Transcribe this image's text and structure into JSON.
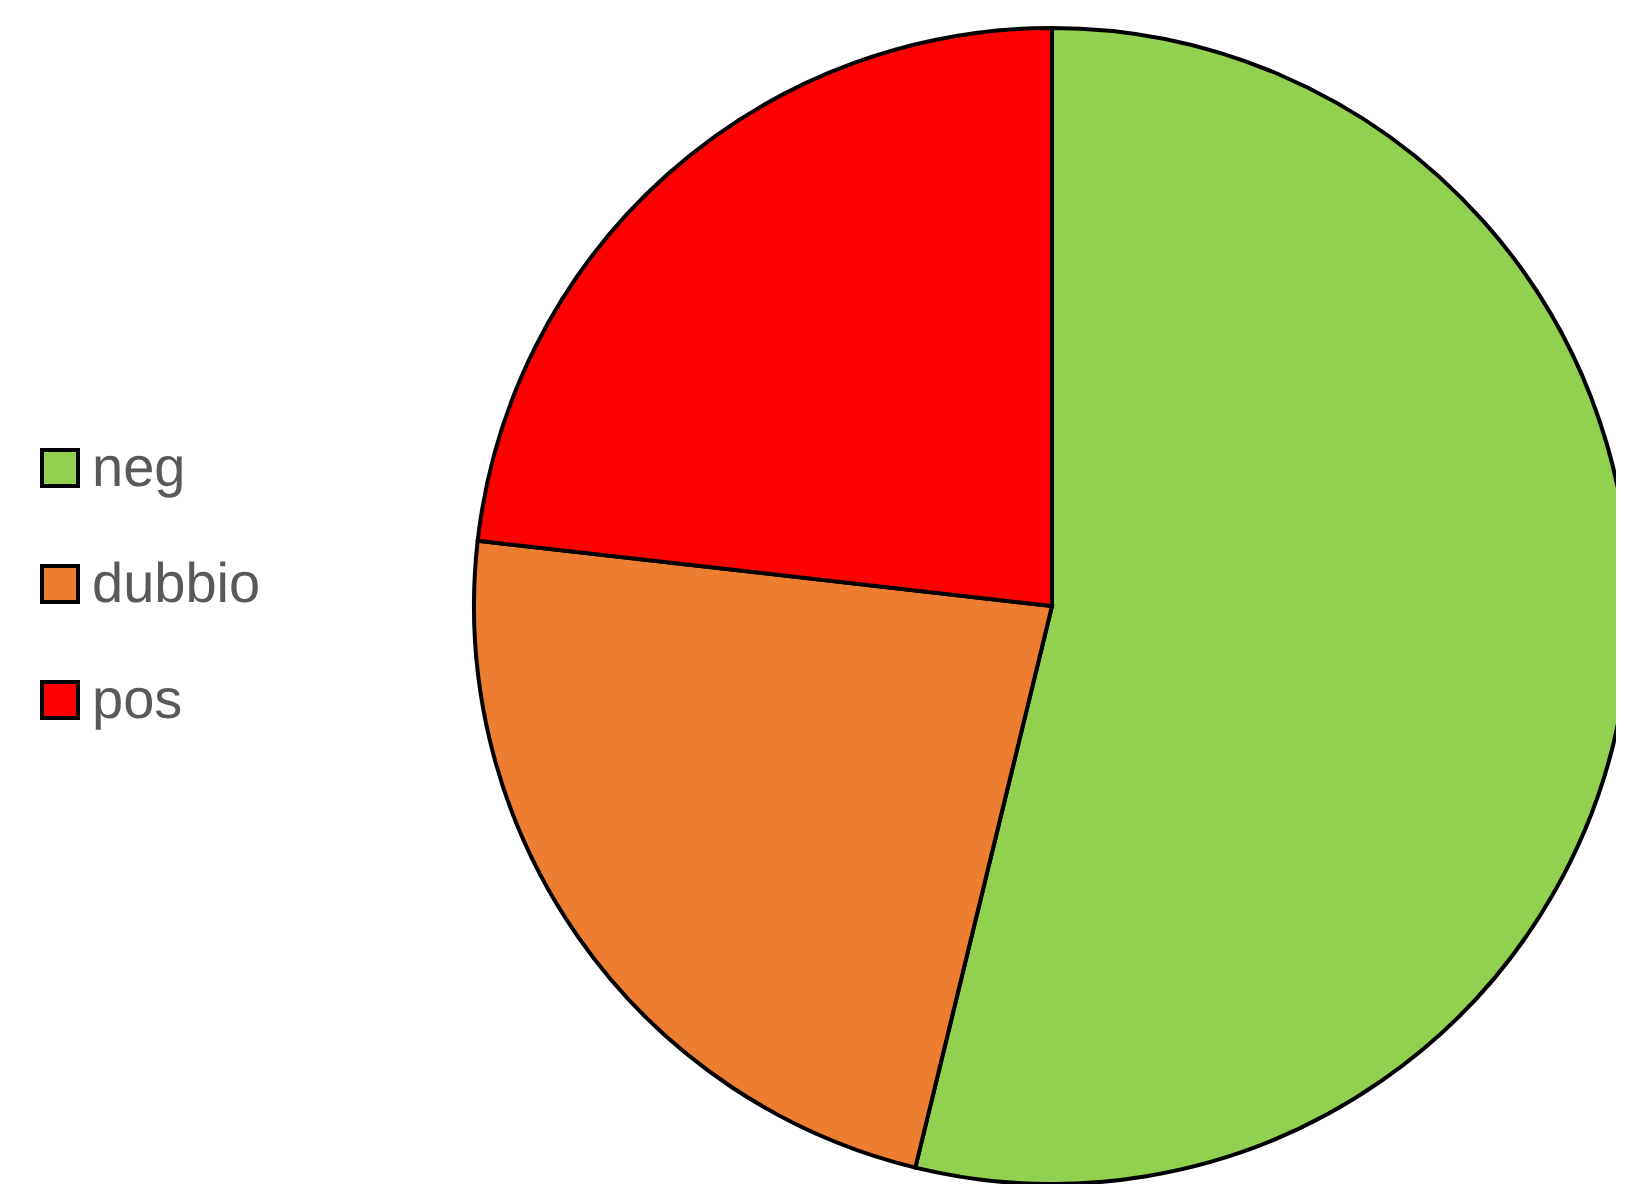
{
  "chart_data": {
    "type": "pie",
    "categories": [
      "neg",
      "dubbio",
      "pos"
    ],
    "values": [
      53.8,
      23.0,
      23.2
    ],
    "colors": [
      "#92d050",
      "#ed7d31",
      "#ff0000"
    ],
    "legend": "left"
  }
}
